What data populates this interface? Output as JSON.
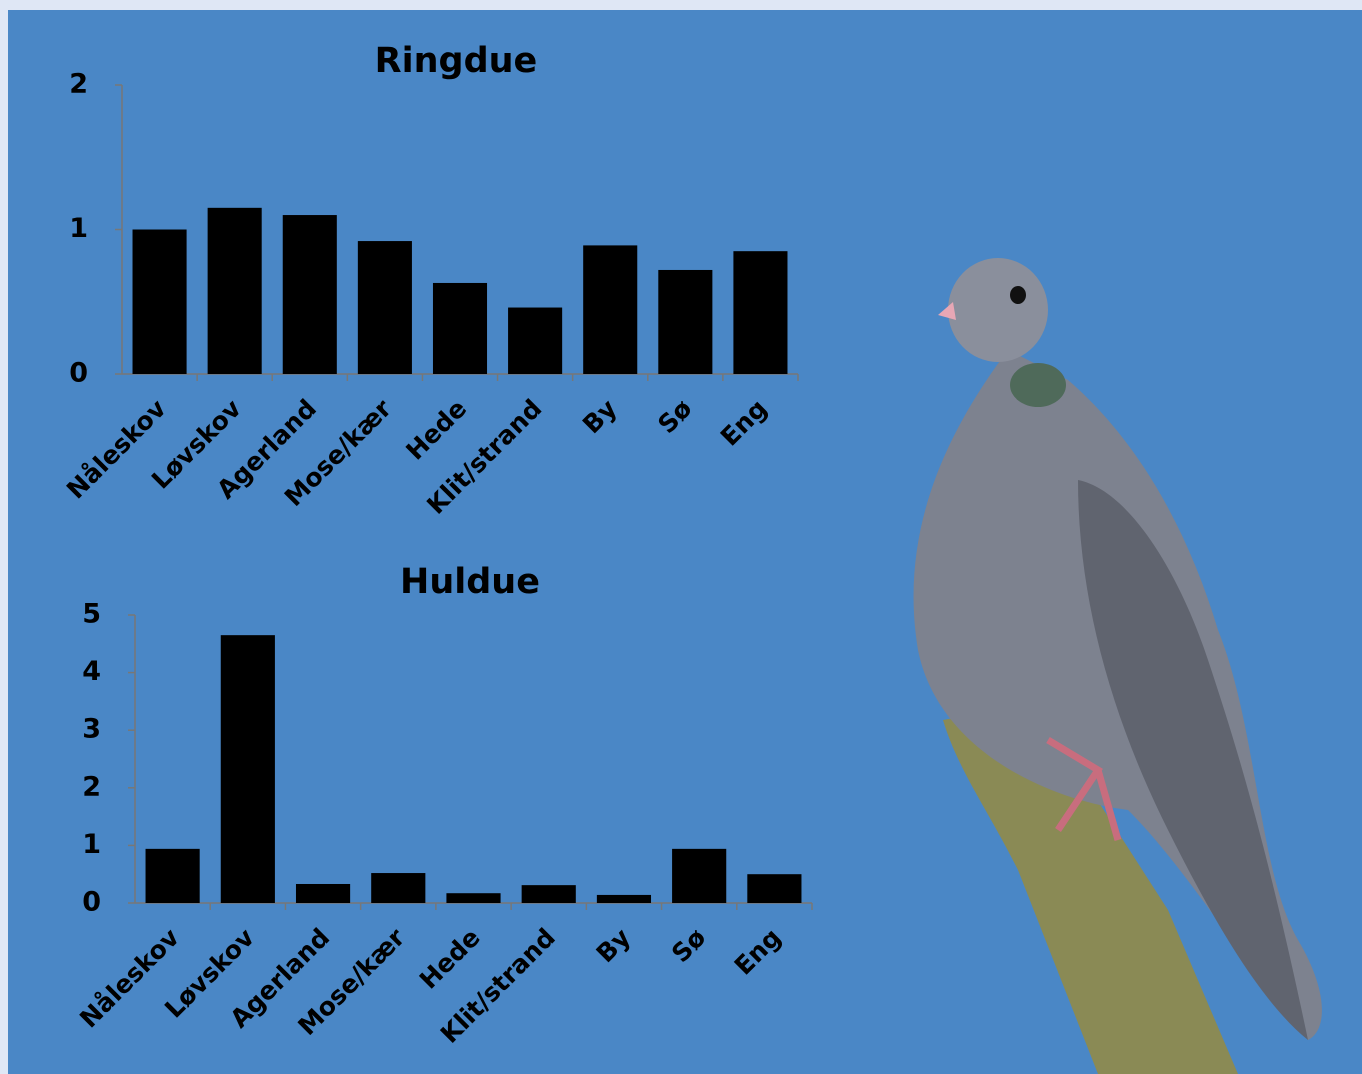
{
  "chart_data": [
    {
      "type": "bar",
      "title": "Ringdue",
      "categories": [
        "Nåleskov",
        "Løvskov",
        "Agerland",
        "Mose/kær",
        "Hede",
        "Klit/strand",
        "By",
        "Sø",
        "Eng"
      ],
      "values": [
        1.0,
        1.15,
        1.1,
        0.92,
        0.63,
        0.46,
        0.89,
        0.72,
        0.85
      ],
      "color": "#000000",
      "ylim": [
        0,
        2
      ],
      "yticks": [
        0,
        1,
        2
      ]
    },
    {
      "type": "bar",
      "title": "Huldue",
      "categories": [
        "Nåleskov",
        "Løvskov",
        "Agerland",
        "Mose/kær",
        "Hede",
        "Klit/strand",
        "By",
        "Sø",
        "Eng"
      ],
      "values": [
        0.94,
        4.65,
        0.33,
        0.52,
        0.17,
        0.31,
        0.14,
        0.94,
        0.5
      ],
      "color": "#000000",
      "ylim": [
        0,
        5
      ],
      "yticks": [
        0,
        1,
        2,
        3,
        4,
        5
      ]
    }
  ]
}
